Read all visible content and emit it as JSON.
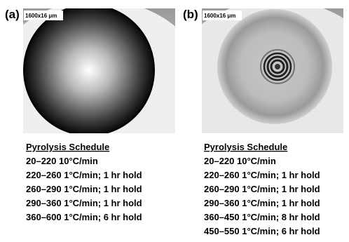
{
  "panels": [
    {
      "label": "(a)",
      "scale": "1600x16 μm",
      "schedule": {
        "title": "Pyrolysis Schedule",
        "steps": [
          "20–220 10°C/min",
          "220–260 1°C/min; 1 hr hold",
          "260–290 1°C/min; 1 hr hold",
          "290–360 1°C/min; 1 hr hold",
          "360–600 1°C/min; 6 hr hold"
        ]
      }
    },
    {
      "label": "(b)",
      "scale": "1600x16 μm",
      "schedule": {
        "title": "Pyrolysis Schedule",
        "steps": [
          "20–220 10°C/min",
          "220–260 1°C/min; 1 hr hold",
          "260–290 1°C/min; 1 hr hold",
          "290–360 1°C/min; 1 hr hold",
          "360–450 1°C/min; 8 hr hold",
          "450–550 1°C/min; 6 hr hold"
        ]
      }
    }
  ]
}
